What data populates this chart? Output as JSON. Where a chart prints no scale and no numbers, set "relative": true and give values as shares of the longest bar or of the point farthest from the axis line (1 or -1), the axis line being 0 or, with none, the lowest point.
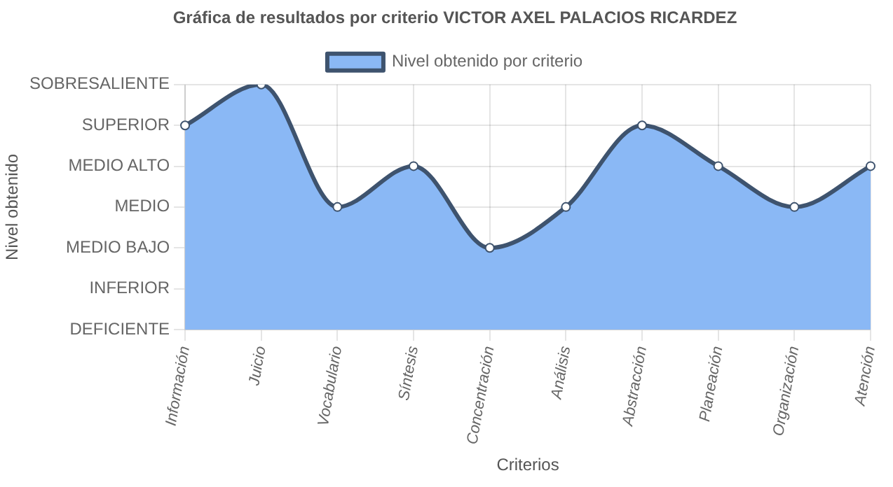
{
  "chart_data": {
    "type": "area",
    "title": "Gráfica de resultados por criterio VICTOR AXEL PALACIOS RICARDEZ",
    "xlabel": "Criterios",
    "annotations": [
      "Nivel obtenido"
    ],
    "categories": [
      "Información",
      "Juicio",
      "Vocabulario",
      "Síntesis",
      "Concentración",
      "Análisis",
      "Abstracción",
      "Planeación",
      "Organización",
      "Atención"
    ],
    "series": [
      {
        "name": "Nivel obtenido por criterio",
        "color": "#8ab8f5",
        "values": [
          0.833,
          1,
          0.5,
          0.667,
          0.333,
          0.5,
          0.833,
          0.667,
          0.5,
          0.667
        ]
      }
    ],
    "relative": true,
    "y_categories": [
      "SOBRESALIENTE",
      "SUPERIOR",
      "MEDIO ALTO",
      "MEDIO",
      "MEDIO BAJO",
      "INFERIOR",
      "DEFICIENTE"
    ],
    "grid": true,
    "legend": "top",
    "marker": "circle",
    "line_style": "solid"
  }
}
